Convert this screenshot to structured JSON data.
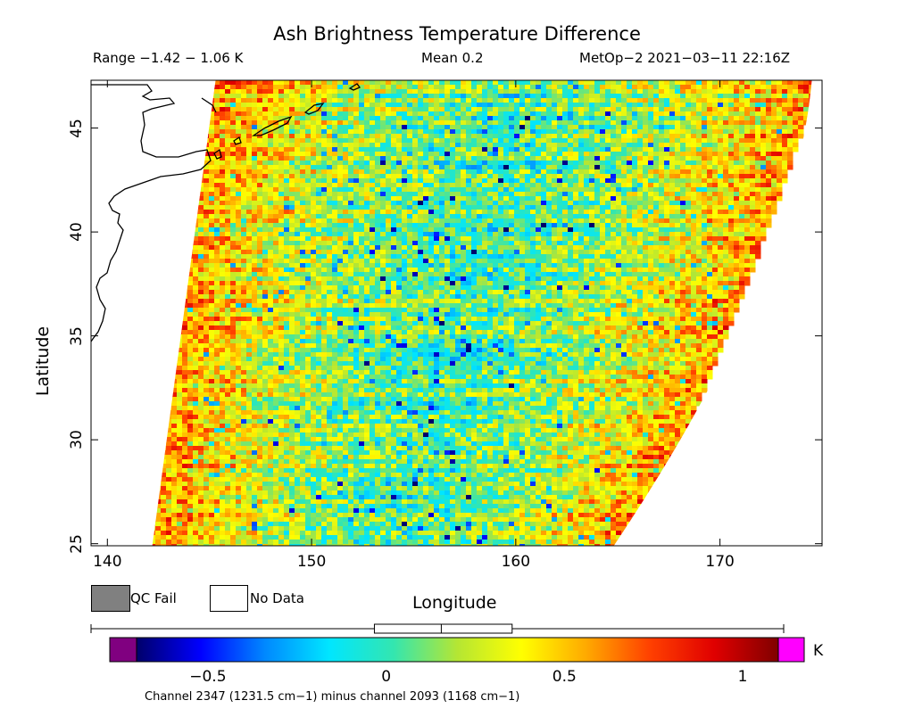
{
  "header": {
    "title": "Ash Brightness Temperature Difference",
    "range": "Range −1.42 − 1.06 K",
    "mean": "Mean 0.2",
    "satellite": "MetOp−2 2021−03−11 22:16Z"
  },
  "axes": {
    "xlabel": "Longitude",
    "ylabel": "Latitude",
    "xlim": [
      139.2,
      175
    ],
    "ylim": [
      24.9,
      47.3
    ],
    "xticks": [
      "140",
      "150",
      "160",
      "170"
    ],
    "yticks": [
      "25",
      "30",
      "35",
      "40",
      "45"
    ]
  },
  "legend": {
    "qc_fail": "QC Fail",
    "no_data": "No Data",
    "qc_fail_color": "#808080",
    "no_data_color": "#ffffff"
  },
  "colorbar": {
    "unit": "K",
    "range": [
      -0.7,
      1.1
    ],
    "ticks": [
      "−0.5",
      "0",
      "0.5",
      "1"
    ],
    "tick_values": [
      -0.5,
      0,
      0.5,
      1
    ],
    "under_color": "#800080",
    "over_color": "#ff00ff",
    "colors": [
      "#00006a",
      "#0000ff",
      "#0088ff",
      "#00e6ff",
      "#33e6b0",
      "#b5e633",
      "#ffff00",
      "#ffaa00",
      "#ff4000",
      "#e00000",
      "#800000"
    ],
    "caption": "Channel 2347 (1231.5 cm−1) minus channel 2093 (1168 cm−1)"
  },
  "boxplot": {
    "min": -0.7,
    "q1": 0.02,
    "median": 0.19,
    "q3": 0.37,
    "max": 1.06
  },
  "chart_data": {
    "type": "heatmap",
    "title": "Ash Brightness Temperature Difference",
    "xlabel": "Longitude",
    "ylabel": "Latitude",
    "xlim": [
      139.2,
      175
    ],
    "ylim": [
      24.9,
      47.3
    ],
    "swath_corners_lonlat": [
      [
        142.2,
        24.9
      ],
      [
        145.3,
        47.3
      ],
      [
        174.5,
        47.3
      ],
      [
        164.8,
        24.9
      ]
    ],
    "value_range": [
      -1.42,
      1.06
    ],
    "mean": 0.2
  }
}
